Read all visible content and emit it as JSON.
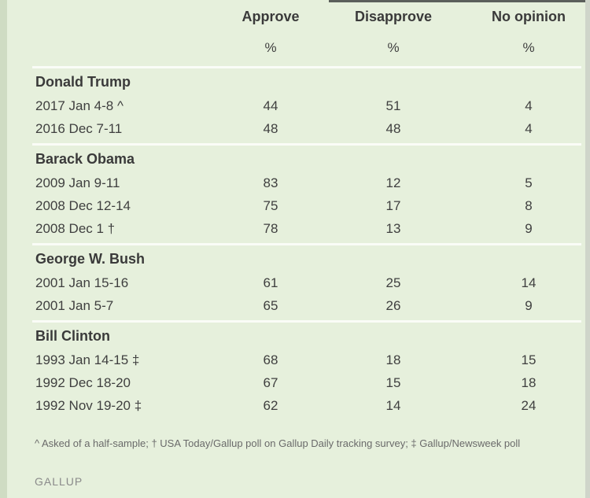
{
  "columns": {
    "approve": {
      "label": "Approve",
      "unit": "%"
    },
    "disapprove": {
      "label": "Disapprove",
      "unit": "%"
    },
    "no_opinion": {
      "label": "No opinion",
      "unit": "%"
    }
  },
  "groups": [
    {
      "name": "Donald Trump",
      "rows": [
        {
          "date": "2017 Jan 4-8 ^",
          "approve": "44",
          "disapprove": "51",
          "no_opinion": "4"
        },
        {
          "date": "2016 Dec 7-11",
          "approve": "48",
          "disapprove": "48",
          "no_opinion": "4"
        }
      ]
    },
    {
      "name": "Barack Obama",
      "rows": [
        {
          "date": "2009 Jan 9-11",
          "approve": "83",
          "disapprove": "12",
          "no_opinion": "5"
        },
        {
          "date": "2008 Dec 12-14",
          "approve": "75",
          "disapprove": "17",
          "no_opinion": "8"
        },
        {
          "date": "2008 Dec 1 †",
          "approve": "78",
          "disapprove": "13",
          "no_opinion": "9"
        }
      ]
    },
    {
      "name": "George W. Bush",
      "rows": [
        {
          "date": "2001 Jan 15-16",
          "approve": "61",
          "disapprove": "25",
          "no_opinion": "14"
        },
        {
          "date": "2001 Jan 5-7",
          "approve": "65",
          "disapprove": "26",
          "no_opinion": "9"
        }
      ]
    },
    {
      "name": "Bill Clinton",
      "rows": [
        {
          "date": "1993 Jan 14-15 ‡",
          "approve": "68",
          "disapprove": "18",
          "no_opinion": "15"
        },
        {
          "date": "1992 Dec 18-20",
          "approve": "67",
          "disapprove": "15",
          "no_opinion": "18"
        },
        {
          "date": "1992 Nov 19-20 ‡",
          "approve": "62",
          "disapprove": "14",
          "no_opinion": "24"
        }
      ]
    }
  ],
  "footnote": "^ Asked of a half-sample; † USA Today/Gallup poll on Gallup Daily tracking survey; ‡ Gallup/Newsweek poll",
  "source": "GALLUP"
}
